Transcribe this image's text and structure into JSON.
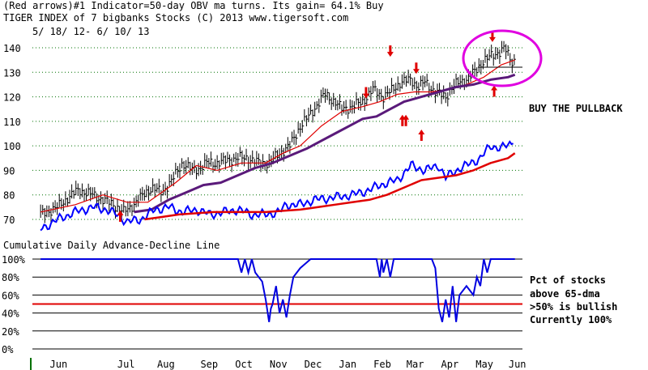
{
  "header": {
    "line1": "(Red arrows)#1 Indicator=50-day OBV ma turns.  Its gain= 64.1% Buy",
    "line2": "TIGER INDEX of  7 bigbanks Stocks  (C) 2013  www.tigersoft.com",
    "line3": "5/ 18/ 12-  6/ 10/ 13"
  },
  "colors": {
    "price_bars": "#000000",
    "ma_short": "#e00000",
    "ma_long": "#5a1a7a",
    "obv": "#0000ff",
    "obv_ma": "#e00000",
    "pct_line": "#0000e0",
    "fifty_line": "#e00000",
    "grid": "#007000",
    "circle": "#e000e0",
    "arrows": "#e00000"
  },
  "chart_data": [
    {
      "type": "line",
      "title": "TIGER INDEX of 7 bigbanks Stocks",
      "subtitle": "5/18/12 - 6/10/13",
      "y_ticks": [
        "140",
        "130",
        "120",
        "110",
        "100",
        "90",
        "80",
        "70"
      ],
      "ylim": [
        66,
        146
      ],
      "x_months": [
        "Jun",
        "Jul",
        "Aug",
        "Sep",
        "Oct",
        "Nov",
        "Dec",
        "Jan",
        "Feb",
        "Mar",
        "Apr",
        "May",
        "Jun"
      ],
      "x_month_index": [
        0,
        1.95,
        3.1,
        4.35,
        5.35,
        6.35,
        7.35,
        8.35,
        9.35,
        10.3,
        11.3,
        12.3,
        13.25
      ],
      "x_range": [
        -0.55,
        13.3
      ],
      "series": [
        {
          "name": "price",
          "x": [
            -0.5,
            0,
            0.3,
            0.6,
            1,
            1.3,
            1.6,
            1.9,
            2.1,
            2.4,
            2.7,
            3,
            3.3,
            3.6,
            3.9,
            4.1,
            4.3,
            4.6,
            4.9,
            5.2,
            5.5,
            5.8,
            6.1,
            6.4,
            6.7,
            7,
            7.3,
            7.5,
            7.7,
            8,
            8.2,
            8.5,
            8.8,
            9.1,
            9.4,
            9.6,
            9.9,
            10.2,
            10.4,
            10.6,
            10.9,
            11.2,
            11.4,
            11.6,
            11.8,
            12.1,
            12.3,
            12.6,
            12.9,
            13.1,
            13.2
          ],
          "values": [
            72,
            75,
            79,
            82,
            80,
            78,
            76,
            73,
            75,
            79,
            83,
            81,
            86,
            93,
            90,
            91,
            93,
            93,
            94,
            95,
            95,
            93,
            93,
            97,
            100,
            108,
            113,
            117,
            121,
            118,
            115,
            116,
            118,
            123,
            120,
            122,
            126,
            127,
            124,
            126,
            122,
            120,
            124,
            126,
            127,
            131,
            135,
            137,
            140,
            134,
            135
          ]
        },
        {
          "name": "ma_short",
          "x": [
            -0.5,
            0.5,
            1.3,
            2,
            2.6,
            3.4,
            4,
            4.6,
            5.3,
            6,
            6.5,
            7,
            7.6,
            8.2,
            8.8,
            9.3,
            9.8,
            10.3,
            10.8,
            11.3,
            11.8,
            12.3,
            12.8,
            13.2
          ],
          "values": [
            73,
            76,
            80,
            77,
            77,
            85,
            92,
            90,
            93,
            93,
            97,
            100,
            108,
            114,
            116,
            118,
            121,
            122,
            122,
            123,
            125,
            128,
            133,
            135
          ]
        },
        {
          "name": "ma_long",
          "x": [
            2.2,
            2.7,
            3.2,
            3.7,
            4.2,
            4.7,
            5.2,
            5.7,
            6.2,
            6.7,
            7.2,
            7.6,
            8,
            8.4,
            8.8,
            9.2,
            9.6,
            10,
            10.5,
            11,
            11.5,
            12,
            12.5,
            13,
            13.2
          ],
          "values": [
            73,
            74,
            78,
            81,
            84,
            85,
            88,
            91,
            93,
            96,
            99,
            102,
            105,
            108,
            111,
            112,
            115,
            118,
            120,
            122,
            124,
            125,
            127,
            128,
            129
          ]
        },
        {
          "name": "obv",
          "x": [
            -0.5,
            0,
            0.5,
            1,
            1.4,
            1.7,
            2,
            2.4,
            2.8,
            3.2,
            3.6,
            4,
            4.4,
            4.8,
            5.2,
            5.6,
            6,
            6.4,
            6.6,
            7,
            7.4,
            8,
            8.5,
            9,
            9.3,
            9.8,
            10.2,
            10.6,
            11,
            11.2,
            11.5,
            11.8,
            12.2,
            12.5,
            12.8,
            13.1,
            13.2
          ],
          "values": [
            66,
            70,
            73,
            75,
            74,
            72,
            69,
            70,
            74,
            75,
            73,
            74,
            72,
            73,
            74,
            72,
            72,
            73,
            76,
            76,
            78,
            79,
            80,
            82,
            84,
            86,
            92,
            90,
            92,
            87,
            90,
            92,
            95,
            100,
            99,
            101,
            105
          ]
        },
        {
          "name": "obv_ma",
          "x": [
            2.5,
            3,
            3.5,
            4,
            4.5,
            5,
            5.5,
            6,
            6.5,
            7,
            7.5,
            8,
            8.5,
            9,
            9.5,
            10,
            10.5,
            11,
            11.5,
            12,
            12.5,
            13,
            13.2
          ],
          "values": [
            70,
            71,
            72,
            72.5,
            73,
            73,
            73,
            73,
            73.5,
            74,
            75,
            76,
            77,
            78,
            80,
            83,
            86,
            87,
            88,
            90,
            93,
            95,
            97
          ]
        }
      ]
    },
    {
      "type": "line",
      "title": "Cumulative Daily Advance-Decline Line",
      "y_ticks": [
        "100%",
        "80%",
        "60%",
        "40%",
        "20%",
        "0%"
      ],
      "ylim": [
        0,
        100
      ],
      "threshold": 50,
      "series": [
        {
          "name": "pct_above_65dma",
          "x": [
            -0.5,
            5.2,
            5.3,
            5.4,
            5.5,
            5.6,
            5.7,
            5.9,
            6,
            6.1,
            6.15,
            6.2,
            6.3,
            6.4,
            6.5,
            6.6,
            6.7,
            6.8,
            7,
            7.3,
            7.8,
            8.5,
            9.2,
            9.3,
            9.35,
            9.4,
            9.5,
            9.6,
            9.7,
            10,
            10.5,
            10.8,
            10.9,
            11,
            11.1,
            11.2,
            11.3,
            11.4,
            11.5,
            11.6,
            11.8,
            12,
            12.1,
            12.2,
            12.3,
            12.4,
            12.5,
            13.2
          ],
          "values": [
            100,
            100,
            85,
            100,
            85,
            100,
            85,
            75,
            55,
            30,
            45,
            50,
            70,
            40,
            55,
            35,
            60,
            80,
            90,
            100,
            100,
            100,
            100,
            80,
            100,
            85,
            100,
            80,
            100,
            100,
            100,
            100,
            90,
            45,
            30,
            55,
            35,
            70,
            30,
            60,
            70,
            60,
            80,
            70,
            100,
            85,
            100,
            100
          ]
        }
      ]
    }
  ],
  "annotations": {
    "buy_pullback": "BUY THE PULLBACK",
    "pct_lines": [
      "Pct of stocks",
      "above 65-dma",
      ">50% is bullish",
      "Currently  100%"
    ]
  }
}
